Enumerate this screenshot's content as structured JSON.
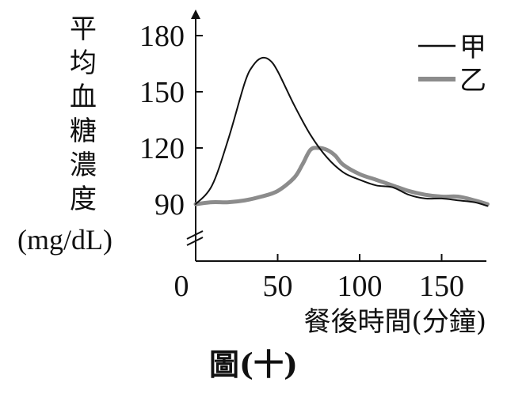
{
  "chart_data": {
    "type": "line",
    "ylabel_chars": [
      "平",
      "均",
      "血",
      "糖",
      "濃",
      "度"
    ],
    "ylabel_unit": "(mg/dL)",
    "xlabel": "餐後時間(分鐘)",
    "caption": "圖(十)",
    "x_ticks": [
      {
        "value": 0,
        "label": "0"
      },
      {
        "value": 50,
        "label": "50"
      },
      {
        "value": 100,
        "label": "100"
      },
      {
        "value": 150,
        "label": "150"
      }
    ],
    "y_ticks": [
      {
        "value": 90,
        "label": "90"
      },
      {
        "value": 120,
        "label": "120"
      },
      {
        "value": 150,
        "label": "150"
      },
      {
        "value": 180,
        "label": "180"
      }
    ],
    "xlim": [
      0,
      178
    ],
    "ylim": [
      90,
      180
    ],
    "y_axis_break": true,
    "legend_position": "top-right",
    "series": [
      {
        "name": "甲",
        "color": "#111111",
        "style": "thin",
        "x": [
          0,
          10,
          20,
          30,
          35,
          40,
          45,
          50,
          60,
          70,
          80,
          90,
          100,
          110,
          120,
          130,
          140,
          150,
          160,
          170,
          178
        ],
        "y": [
          90,
          100,
          125,
          155,
          164,
          168,
          167,
          161,
          143,
          127,
          115,
          107,
          103,
          100,
          99,
          95,
          93,
          93,
          92,
          91,
          89
        ]
      },
      {
        "name": "乙",
        "color": "#8c8c8c",
        "style": "thick",
        "x": [
          0,
          10,
          20,
          30,
          40,
          50,
          60,
          65,
          70,
          75,
          80,
          85,
          90,
          100,
          110,
          120,
          130,
          140,
          150,
          160,
          170,
          178
        ],
        "y": [
          90,
          91,
          91,
          92,
          94,
          97,
          104,
          111,
          119,
          120,
          119,
          116,
          111,
          106,
          103,
          100,
          97,
          95,
          94,
          94,
          92,
          90
        ]
      }
    ]
  }
}
